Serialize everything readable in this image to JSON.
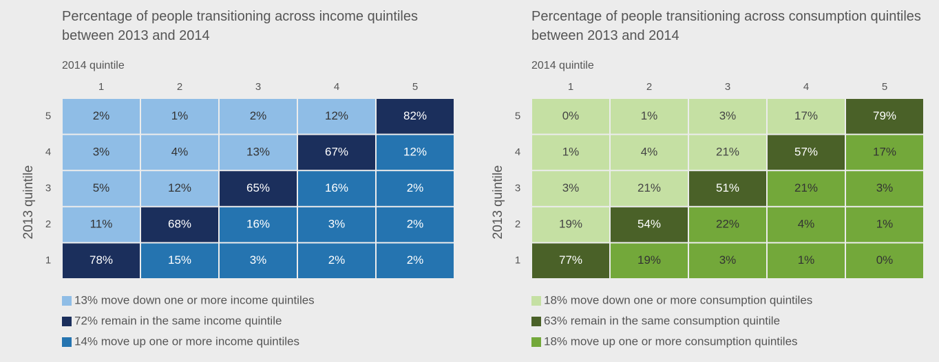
{
  "chart_data": [
    {
      "type": "heatmap",
      "title": "Percentage of people transitioning across income quintiles between 2013 and 2014",
      "x_label": "2014 quintile",
      "y_label": "2013 quintile",
      "x_categories": [
        1,
        2,
        3,
        4,
        5
      ],
      "y_categories": [
        5,
        4,
        3,
        2,
        1
      ],
      "values": [
        [
          2,
          1,
          2,
          12,
          82
        ],
        [
          3,
          4,
          13,
          67,
          12
        ],
        [
          5,
          12,
          65,
          16,
          2
        ],
        [
          11,
          68,
          16,
          3,
          2
        ],
        [
          78,
          15,
          3,
          2,
          2
        ]
      ],
      "value_labels": [
        [
          "2%",
          "1%",
          "2%",
          "12%",
          "82%"
        ],
        [
          "3%",
          "4%",
          "13%",
          "67%",
          "12%"
        ],
        [
          "5%",
          "12%",
          "65%",
          "16%",
          "2%"
        ],
        [
          "11%",
          "68%",
          "16%",
          "3%",
          "2%"
        ],
        [
          "78%",
          "15%",
          "3%",
          "2%",
          "2%"
        ]
      ],
      "legend": [
        {
          "name": "13% move down one or more income quintiles",
          "color": "#8fbde6",
          "text_color": "#333333"
        },
        {
          "name": "72% remain in the same income quintile",
          "color": "#1b2f5c",
          "text_color": "#ffffff"
        },
        {
          "name": "14% move up one or more income quintiles",
          "color": "#2574b0",
          "text_color": "#ffffff"
        }
      ]
    },
    {
      "type": "heatmap",
      "title": "Percentage of people transitioning across consumption quintiles between 2013 and 2014",
      "x_label": "2014 quintile",
      "y_label": "2013 quintile",
      "x_categories": [
        1,
        2,
        3,
        4,
        5
      ],
      "y_categories": [
        5,
        4,
        3,
        2,
        1
      ],
      "values": [
        [
          0,
          1,
          3,
          17,
          79
        ],
        [
          1,
          4,
          21,
          57,
          17
        ],
        [
          3,
          21,
          51,
          21,
          3
        ],
        [
          19,
          54,
          22,
          4,
          1
        ],
        [
          77,
          19,
          3,
          1,
          0
        ]
      ],
      "value_labels": [
        [
          "0%",
          "1%",
          "3%",
          "17%",
          "79%"
        ],
        [
          "1%",
          "4%",
          "21%",
          "57%",
          "17%"
        ],
        [
          "3%",
          "21%",
          "51%",
          "21%",
          "3%"
        ],
        [
          "19%",
          "54%",
          "22%",
          "4%",
          "1%"
        ],
        [
          "77%",
          "19%",
          "3%",
          "1%",
          "0%"
        ]
      ],
      "legend": [
        {
          "name": "18% move down one or more consumption quintiles",
          "color": "#c5e0a3",
          "text_color": "#444444"
        },
        {
          "name": "63% remain in the same consumption quintile",
          "color": "#4a6128",
          "text_color": "#ffffff"
        },
        {
          "name": "18% move up one or more consumption quintiles",
          "color": "#73a83a",
          "text_color": "#333333"
        }
      ]
    }
  ]
}
